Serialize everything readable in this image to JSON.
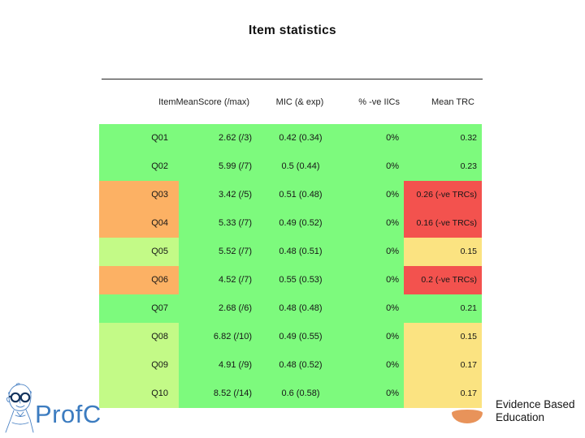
{
  "title": "Item statistics",
  "chart_data": {
    "type": "table",
    "title": "Item statistics",
    "columns": [
      "ItemMeanScore (/max)",
      "MIC (& exp)",
      "% -ve IICs",
      "Mean TRC"
    ],
    "rows": [
      {
        "item": "Q01",
        "mean_score": "2.62 (/3)",
        "mic": "0.42 (0.34)",
        "pct_neg_iics": "0%",
        "mean_trc": "0.32",
        "item_flag": "green",
        "trc_flag": "green"
      },
      {
        "item": "Q02",
        "mean_score": "5.99 (/7)",
        "mic": "0.5 (0.44)",
        "pct_neg_iics": "0%",
        "mean_trc": "0.23",
        "item_flag": "green",
        "trc_flag": "green"
      },
      {
        "item": "Q03",
        "mean_score": "3.42 (/5)",
        "mic": "0.51 (0.48)",
        "pct_neg_iics": "0%",
        "mean_trc": "0.26 (-ve TRCs)",
        "item_flag": "orange",
        "trc_flag": "red"
      },
      {
        "item": "Q04",
        "mean_score": "5.33 (/7)",
        "mic": "0.49 (0.52)",
        "pct_neg_iics": "0%",
        "mean_trc": "0.16 (-ve TRCs)",
        "item_flag": "orange",
        "trc_flag": "red"
      },
      {
        "item": "Q05",
        "mean_score": "5.52 (/7)",
        "mic": "0.48 (0.51)",
        "pct_neg_iics": "0%",
        "mean_trc": "0.15",
        "item_flag": "light_green",
        "trc_flag": "yellow"
      },
      {
        "item": "Q06",
        "mean_score": "4.52 (/7)",
        "mic": "0.55 (0.53)",
        "pct_neg_iics": "0%",
        "mean_trc": "0.2 (-ve TRCs)",
        "item_flag": "orange",
        "trc_flag": "red"
      },
      {
        "item": "Q07",
        "mean_score": "2.68 (/6)",
        "mic": "0.48 (0.48)",
        "pct_neg_iics": "0%",
        "mean_trc": "0.21",
        "item_flag": "green",
        "trc_flag": "green"
      },
      {
        "item": "Q08",
        "mean_score": "6.82 (/10)",
        "mic": "0.49 (0.55)",
        "pct_neg_iics": "0%",
        "mean_trc": "0.15",
        "item_flag": "light_green",
        "trc_flag": "yellow"
      },
      {
        "item": "Q09",
        "mean_score": "4.91 (/9)",
        "mic": "0.48 (0.52)",
        "pct_neg_iics": "0%",
        "mean_trc": "0.17",
        "item_flag": "light_green",
        "trc_flag": "yellow"
      },
      {
        "item": "Q10",
        "mean_score": "8.52 (/14)",
        "mic": "0.6 (0.58)",
        "pct_neg_iics": "0%",
        "mean_trc": "0.17",
        "item_flag": "light_green",
        "trc_flag": "yellow"
      }
    ],
    "flag_colors": {
      "green": "#7dfa7d",
      "light_green": "#c3fa87",
      "orange": "#fcb164",
      "yellow": "#fbe381",
      "red": "#f3524e"
    },
    "layout": {
      "grid": false,
      "body_fill": "green",
      "legend": "none"
    }
  },
  "footer": {
    "profc_label": "ProfC",
    "ebe_line1": "Evidence Based",
    "ebe_line2": "Education",
    "ebe_accent_color": "#e8935a",
    "profc_color": "#3c7cc0"
  }
}
